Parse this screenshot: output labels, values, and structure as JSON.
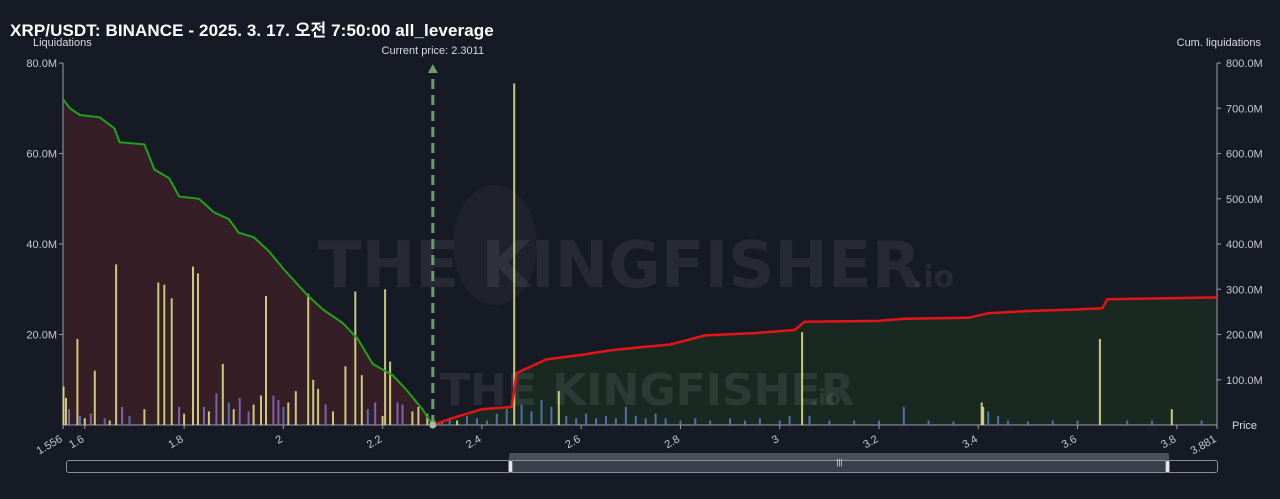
{
  "title": "XRP/USDT: BINANCE - 2025. 3. 17. 오전 7:50:00 all_leverage",
  "current_price_label": "Current price: 2.3011",
  "watermark": {
    "brand": "THE KINGFISHER",
    "suffix": ".io"
  },
  "colors": {
    "long_cum_line": "#1fa31f",
    "short_cum_line": "#e41515",
    "long_fill": "#3a1f27",
    "short_fill": "#1a2b22",
    "bar_yellow": "#e6e68c",
    "bar_purple": "#8a6fc2",
    "bar_blue": "#5b7bbf",
    "current_price": "#6f9a6f"
  },
  "chart_data": {
    "type": "bar",
    "title": "XRP/USDT: BINANCE - 2025. 3. 17. 오전 7:50:00 all_leverage",
    "xlabel": "Price",
    "ylabel_left": "Liquidations",
    "ylabel_right": "Cum. liquidations",
    "xlim": [
      1.556,
      3.881
    ],
    "ylim_left": [
      0,
      80000000
    ],
    "ylim_right": [
      0,
      800000000
    ],
    "x_ticks": [
      "1.556",
      "1.6",
      "1.8",
      "2",
      "2.2",
      "2.4",
      "2.6",
      "2.8",
      "3",
      "3.2",
      "3.4",
      "3.6",
      "3.8",
      "3.881"
    ],
    "y_ticks_left": [
      "80.0M",
      "60.0M",
      "40.0M",
      "20.0M"
    ],
    "y_ticks_right": [
      "800.0M",
      "700.0M",
      "600.0M",
      "500.0M",
      "400.0M",
      "300.0M",
      "200.0M",
      "100.0M"
    ],
    "current_price": 2.3011,
    "series": [
      {
        "role": "long_cumulative",
        "points": [
          [
            1.556,
            720000000
          ],
          [
            1.57,
            700000000
          ],
          [
            1.59,
            685000000
          ],
          [
            1.63,
            680000000
          ],
          [
            1.66,
            655000000
          ],
          [
            1.67,
            625000000
          ],
          [
            1.72,
            620000000
          ],
          [
            1.74,
            565000000
          ],
          [
            1.77,
            545000000
          ],
          [
            1.79,
            505000000
          ],
          [
            1.83,
            500000000
          ],
          [
            1.86,
            470000000
          ],
          [
            1.89,
            455000000
          ],
          [
            1.91,
            425000000
          ],
          [
            1.94,
            415000000
          ],
          [
            1.97,
            385000000
          ],
          [
            2.0,
            345000000
          ],
          [
            2.05,
            285000000
          ],
          [
            2.08,
            255000000
          ],
          [
            2.12,
            225000000
          ],
          [
            2.15,
            190000000
          ],
          [
            2.18,
            135000000
          ],
          [
            2.22,
            110000000
          ],
          [
            2.25,
            75000000
          ],
          [
            2.28,
            35000000
          ],
          [
            2.3011,
            0
          ]
        ]
      },
      {
        "role": "short_cumulative",
        "points": [
          [
            2.3011,
            0
          ],
          [
            2.34,
            15000000
          ],
          [
            2.37,
            25000000
          ],
          [
            2.4,
            35000000
          ],
          [
            2.46,
            40000000
          ],
          [
            2.47,
            115000000
          ],
          [
            2.5,
            130000000
          ],
          [
            2.53,
            145000000
          ],
          [
            2.6,
            155000000
          ],
          [
            2.66,
            165000000
          ],
          [
            2.72,
            172000000
          ],
          [
            2.78,
            178000000
          ],
          [
            2.85,
            198000000
          ],
          [
            2.95,
            203000000
          ],
          [
            3.03,
            210000000
          ],
          [
            3.05,
            228000000
          ],
          [
            3.2,
            230000000
          ],
          [
            3.25,
            235000000
          ],
          [
            3.38,
            237000000
          ],
          [
            3.42,
            247000000
          ],
          [
            3.5,
            252000000
          ],
          [
            3.59,
            255000000
          ],
          [
            3.65,
            258000000
          ],
          [
            3.66,
            278000000
          ],
          [
            3.881,
            282000000
          ]
        ]
      }
    ],
    "bars": [
      [
        1.557,
        8.5,
        "y"
      ],
      [
        1.562,
        6.0,
        "y"
      ],
      [
        1.568,
        3.5,
        "p"
      ],
      [
        1.585,
        19.0,
        "y"
      ],
      [
        1.59,
        2.0,
        "b"
      ],
      [
        1.6,
        1.5,
        "y"
      ],
      [
        1.612,
        2.5,
        "p"
      ],
      [
        1.62,
        12.0,
        "y"
      ],
      [
        1.64,
        1.5,
        "b"
      ],
      [
        1.65,
        1.0,
        "y"
      ],
      [
        1.663,
        35.5,
        "y"
      ],
      [
        1.675,
        4.0,
        "p"
      ],
      [
        1.69,
        2.0,
        "b"
      ],
      [
        1.72,
        3.5,
        "y"
      ],
      [
        1.748,
        31.5,
        "y"
      ],
      [
        1.76,
        31.0,
        "y"
      ],
      [
        1.775,
        28.0,
        "y"
      ],
      [
        1.79,
        4.0,
        "p"
      ],
      [
        1.8,
        2.5,
        "y"
      ],
      [
        1.818,
        35.0,
        "y"
      ],
      [
        1.828,
        33.5,
        "y"
      ],
      [
        1.84,
        4.0,
        "p"
      ],
      [
        1.85,
        3.0,
        "y"
      ],
      [
        1.865,
        7.0,
        "p"
      ],
      [
        1.878,
        13.5,
        "y"
      ],
      [
        1.89,
        5.0,
        "b"
      ],
      [
        1.9,
        3.5,
        "y"
      ],
      [
        1.912,
        6.0,
        "p"
      ],
      [
        1.93,
        3.0,
        "p"
      ],
      [
        1.94,
        4.5,
        "y"
      ],
      [
        1.955,
        6.5,
        "y"
      ],
      [
        1.965,
        28.5,
        "y"
      ],
      [
        1.98,
        6.5,
        "p"
      ],
      [
        1.99,
        5.5,
        "p"
      ],
      [
        2.0,
        4.0,
        "b"
      ],
      [
        2.01,
        5.0,
        "y"
      ],
      [
        2.025,
        7.5,
        "y"
      ],
      [
        2.05,
        29.0,
        "y"
      ],
      [
        2.06,
        10.0,
        "y"
      ],
      [
        2.07,
        8.0,
        "y"
      ],
      [
        2.085,
        4.5,
        "p"
      ],
      [
        2.1,
        3.0,
        "y"
      ],
      [
        2.125,
        13.0,
        "y"
      ],
      [
        2.145,
        29.5,
        "y"
      ],
      [
        2.158,
        11.0,
        "y"
      ],
      [
        2.17,
        3.5,
        "b"
      ],
      [
        2.185,
        5.0,
        "p"
      ],
      [
        2.2,
        2.0,
        "y"
      ],
      [
        2.205,
        30.0,
        "y"
      ],
      [
        2.215,
        14.0,
        "y"
      ],
      [
        2.23,
        5.0,
        "p"
      ],
      [
        2.24,
        4.5,
        "p"
      ],
      [
        2.26,
        3.0,
        "y"
      ],
      [
        2.272,
        4.0,
        "y"
      ],
      [
        2.29,
        2.5,
        "y"
      ],
      [
        2.305,
        1.0,
        "b"
      ],
      [
        2.32,
        1.0,
        "b"
      ],
      [
        2.335,
        1.5,
        "b"
      ],
      [
        2.35,
        1.0,
        "y"
      ],
      [
        2.37,
        2.0,
        "b"
      ],
      [
        2.39,
        1.5,
        "b"
      ],
      [
        2.41,
        1.0,
        "b"
      ],
      [
        2.43,
        2.5,
        "b"
      ],
      [
        2.45,
        3.5,
        "b"
      ],
      [
        2.465,
        75.5,
        "y"
      ],
      [
        2.48,
        4.5,
        "b"
      ],
      [
        2.5,
        3.0,
        "b"
      ],
      [
        2.52,
        5.5,
        "b"
      ],
      [
        2.54,
        4.0,
        "b"
      ],
      [
        2.555,
        7.5,
        "y"
      ],
      [
        2.57,
        2.0,
        "b"
      ],
      [
        2.59,
        1.5,
        "b"
      ],
      [
        2.61,
        2.5,
        "b"
      ],
      [
        2.63,
        1.5,
        "b"
      ],
      [
        2.65,
        2.0,
        "b"
      ],
      [
        2.67,
        1.5,
        "b"
      ],
      [
        2.69,
        4.0,
        "b"
      ],
      [
        2.71,
        2.0,
        "b"
      ],
      [
        2.73,
        1.5,
        "b"
      ],
      [
        2.75,
        2.5,
        "b"
      ],
      [
        2.77,
        1.5,
        "b"
      ],
      [
        2.8,
        1.0,
        "b"
      ],
      [
        2.83,
        1.5,
        "b"
      ],
      [
        2.86,
        1.0,
        "b"
      ],
      [
        2.9,
        1.5,
        "b"
      ],
      [
        2.93,
        1.0,
        "b"
      ],
      [
        2.96,
        1.5,
        "b"
      ],
      [
        3.0,
        1.0,
        "b"
      ],
      [
        3.02,
        2.0,
        "b"
      ],
      [
        3.045,
        20.5,
        "y"
      ],
      [
        3.06,
        2.0,
        "b"
      ],
      [
        3.1,
        1.0,
        "b"
      ],
      [
        3.15,
        1.0,
        "b"
      ],
      [
        3.2,
        1.0,
        "b"
      ],
      [
        3.25,
        4.0,
        "b"
      ],
      [
        3.3,
        1.0,
        "b"
      ],
      [
        3.35,
        0.8,
        "b"
      ],
      [
        3.407,
        5.0,
        "y"
      ],
      [
        3.41,
        4.0,
        "y"
      ],
      [
        3.42,
        3.0,
        "b"
      ],
      [
        3.44,
        2.0,
        "b"
      ],
      [
        3.46,
        1.0,
        "b"
      ],
      [
        3.5,
        0.8,
        "b"
      ],
      [
        3.55,
        1.0,
        "b"
      ],
      [
        3.6,
        1.0,
        "b"
      ],
      [
        3.645,
        19.0,
        "y"
      ],
      [
        3.7,
        1.0,
        "b"
      ],
      [
        3.75,
        1.0,
        "b"
      ],
      [
        3.79,
        3.5,
        "y"
      ],
      [
        3.85,
        1.0,
        "b"
      ]
    ]
  }
}
